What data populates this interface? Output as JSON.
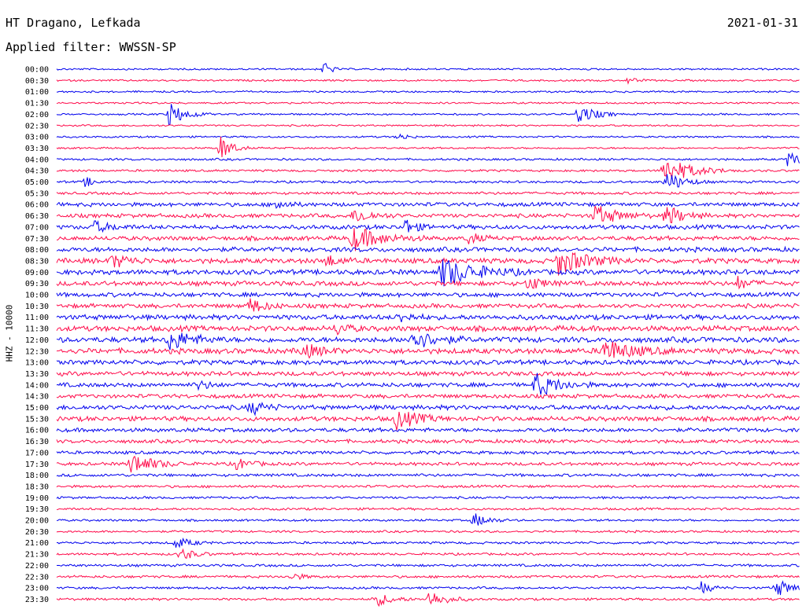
{
  "header": {
    "station": "HT Dragano, Lefkada",
    "date": "2021-01-31",
    "filter": "Applied filter: WWSSN-SP"
  },
  "chart_data": {
    "type": "line",
    "title": "HT Dragano, Lefkada",
    "ylabel": "HHZ - 10000",
    "xlim": [
      0,
      30
    ],
    "row_labels": [
      "00:00",
      "00:30",
      "01:00",
      "01:30",
      "02:00",
      "02:30",
      "03:00",
      "03:30",
      "04:00",
      "04:30",
      "05:00",
      "05:30",
      "06:00",
      "06:30",
      "07:00",
      "07:30",
      "08:00",
      "08:30",
      "09:00",
      "09:30",
      "10:00",
      "10:30",
      "11:00",
      "11:30",
      "12:00",
      "12:30",
      "13:00",
      "13:30",
      "14:00",
      "14:30",
      "15:00",
      "15:30",
      "16:00",
      "16:30",
      "17:00",
      "17:30",
      "18:00",
      "18:30",
      "19:00",
      "19:30",
      "20:00",
      "20:30",
      "21:00",
      "21:30",
      "22:00",
      "22:30",
      "23:00",
      "23:30"
    ],
    "colors": [
      "#0000ee",
      "#ff0a4a"
    ],
    "noise_amplitude": [
      1,
      1,
      1,
      1,
      1,
      1,
      1,
      1,
      1.2,
      1.2,
      1.3,
      1.5,
      2.2,
      2.2,
      2.4,
      2.4,
      2.6,
      2.8,
      2.8,
      2.6,
      2.4,
      2.4,
      2.8,
      3,
      3,
      3,
      2.6,
      2.4,
      2.4,
      2.2,
      2.6,
      2.6,
      2.2,
      2,
      1.8,
      1.8,
      1.6,
      1.4,
      1.3,
      1.3,
      1.2,
      1.2,
      1.3,
      1.3,
      1.4,
      1.4,
      1.3,
      1.3
    ],
    "events": [
      {
        "row": 0,
        "t": 10.8,
        "amp": 16,
        "dur": 0.2
      },
      {
        "row": 1,
        "t": 23.0,
        "amp": 5,
        "dur": 0.3
      },
      {
        "row": 4,
        "t": 4.5,
        "amp": 16,
        "dur": 0.6
      },
      {
        "row": 4,
        "t": 21.0,
        "amp": 14,
        "dur": 0.6
      },
      {
        "row": 6,
        "t": 13.8,
        "amp": 6,
        "dur": 0.3
      },
      {
        "row": 7,
        "t": 6.6,
        "amp": 18,
        "dur": 0.4
      },
      {
        "row": 8,
        "t": 29.5,
        "amp": 8,
        "dur": 1.0
      },
      {
        "row": 9,
        "t": 24.5,
        "amp": 18,
        "dur": 1.0
      },
      {
        "row": 10,
        "t": 1.1,
        "amp": 8,
        "dur": 0.3
      },
      {
        "row": 10,
        "t": 24.6,
        "amp": 14,
        "dur": 0.6
      },
      {
        "row": 12,
        "t": 8.8,
        "amp": 8,
        "dur": 0.4
      },
      {
        "row": 13,
        "t": 12.0,
        "amp": 10,
        "dur": 0.6
      },
      {
        "row": 13,
        "t": 21.7,
        "amp": 14,
        "dur": 0.8
      },
      {
        "row": 13,
        "t": 24.6,
        "amp": 14,
        "dur": 0.6
      },
      {
        "row": 14,
        "t": 1.4,
        "amp": 8,
        "dur": 0.6
      },
      {
        "row": 14,
        "t": 14.0,
        "amp": 12,
        "dur": 0.4
      },
      {
        "row": 15,
        "t": 11.9,
        "amp": 16,
        "dur": 1.0
      },
      {
        "row": 15,
        "t": 16.6,
        "amp": 8,
        "dur": 0.4
      },
      {
        "row": 17,
        "t": 2.2,
        "amp": 10,
        "dur": 0.6
      },
      {
        "row": 17,
        "t": 20.2,
        "amp": 18,
        "dur": 1.0
      },
      {
        "row": 17,
        "t": 10.8,
        "amp": 8,
        "dur": 0.5
      },
      {
        "row": 18,
        "t": 15.5,
        "amp": 20,
        "dur": 1.2
      },
      {
        "row": 19,
        "t": 19.0,
        "amp": 10,
        "dur": 0.5
      },
      {
        "row": 19,
        "t": 27.5,
        "amp": 8,
        "dur": 0.4
      },
      {
        "row": 21,
        "t": 7.8,
        "amp": 10,
        "dur": 0.5
      },
      {
        "row": 22,
        "t": 13.8,
        "amp": 6,
        "dur": 0.5
      },
      {
        "row": 23,
        "t": 11.3,
        "amp": 8,
        "dur": 0.4
      },
      {
        "row": 24,
        "t": 4.5,
        "amp": 14,
        "dur": 0.8
      },
      {
        "row": 24,
        "t": 14.3,
        "amp": 14,
        "dur": 0.8
      },
      {
        "row": 25,
        "t": 9.9,
        "amp": 10,
        "dur": 0.6
      },
      {
        "row": 25,
        "t": 22.0,
        "amp": 16,
        "dur": 1.0
      },
      {
        "row": 28,
        "t": 19.3,
        "amp": 16,
        "dur": 0.8
      },
      {
        "row": 28,
        "t": 5.7,
        "amp": 6,
        "dur": 0.4
      },
      {
        "row": 30,
        "t": 7.8,
        "amp": 10,
        "dur": 0.5
      },
      {
        "row": 31,
        "t": 13.6,
        "amp": 14,
        "dur": 0.8
      },
      {
        "row": 35,
        "t": 3.0,
        "amp": 14,
        "dur": 0.8
      },
      {
        "row": 35,
        "t": 7.2,
        "amp": 8,
        "dur": 0.5
      },
      {
        "row": 40,
        "t": 16.8,
        "amp": 10,
        "dur": 0.5
      },
      {
        "row": 42,
        "t": 4.8,
        "amp": 8,
        "dur": 0.5
      },
      {
        "row": 43,
        "t": 5.0,
        "amp": 8,
        "dur": 0.5
      },
      {
        "row": 45,
        "t": 9.4,
        "amp": 6,
        "dur": 0.4
      },
      {
        "row": 46,
        "t": 26.0,
        "amp": 8,
        "dur": 0.4
      },
      {
        "row": 46,
        "t": 29.0,
        "amp": 12,
        "dur": 0.6
      },
      {
        "row": 47,
        "t": 12.8,
        "amp": 10,
        "dur": 0.6
      },
      {
        "row": 47,
        "t": 15.0,
        "amp": 12,
        "dur": 0.6
      }
    ]
  }
}
